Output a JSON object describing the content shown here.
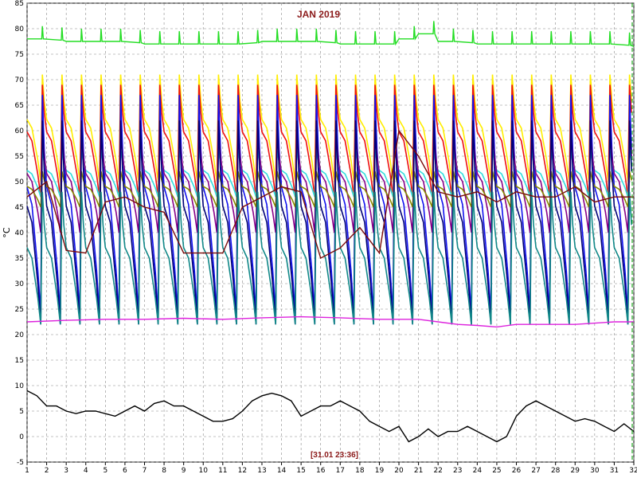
{
  "chart_data": {
    "type": "line",
    "title": "JAN 2019",
    "ylabel": "°C",
    "timestamp": "[31.01 23:36]",
    "xlim": [
      1,
      32
    ],
    "ylim": [
      -5,
      85
    ],
    "x_ticks": [
      1,
      2,
      3,
      4,
      5,
      6,
      7,
      8,
      9,
      10,
      11,
      12,
      13,
      14,
      15,
      16,
      17,
      18,
      19,
      20,
      21,
      22,
      23,
      24,
      25,
      26,
      27,
      28,
      29,
      30,
      31,
      32
    ],
    "y_ticks": [
      -5,
      0,
      5,
      10,
      15,
      20,
      25,
      30,
      35,
      40,
      45,
      50,
      55,
      60,
      65,
      70,
      75,
      80,
      85
    ],
    "grid": true,
    "grid_style": "dashed",
    "cursor_day": 32,
    "colors": {
      "green": "#22dd22",
      "yellow": "#ffee00",
      "red": "#ee1111",
      "blue": "#1111ee",
      "cyan": "#33dddd",
      "purple": "#880088",
      "olive": "#888800",
      "maroon": "#7a0a0a",
      "navy": "#000077",
      "teal": "#118888",
      "magenta": "#dd22dd",
      "black": "#000000"
    },
    "series": [
      {
        "color": "#22dd22",
        "values": [
          [
            1,
            78
          ],
          [
            3,
            77.5
          ],
          [
            5,
            77.5
          ],
          [
            7,
            77
          ],
          [
            9,
            77
          ],
          [
            11,
            77
          ],
          [
            13,
            77.5
          ],
          [
            15,
            77.5
          ],
          [
            17,
            77
          ],
          [
            19,
            77
          ],
          [
            20,
            78
          ],
          [
            21,
            79
          ],
          [
            22,
            77.5
          ],
          [
            24,
            77
          ],
          [
            26,
            77
          ],
          [
            28,
            77
          ],
          [
            30,
            77
          ],
          [
            32,
            76.5
          ]
        ]
      },
      {
        "color": "#dd22dd",
        "values": [
          [
            1,
            22.5
          ],
          [
            3,
            22.8
          ],
          [
            5,
            23
          ],
          [
            7,
            23
          ],
          [
            9,
            23.2
          ],
          [
            11,
            23
          ],
          [
            13,
            23.3
          ],
          [
            15,
            23.5
          ],
          [
            17,
            23.3
          ],
          [
            19,
            23
          ],
          [
            21,
            23
          ],
          [
            22,
            22.5
          ],
          [
            23,
            22
          ],
          [
            24,
            21.8
          ],
          [
            25,
            21.5
          ],
          [
            26,
            22
          ],
          [
            27,
            22
          ],
          [
            29,
            22
          ],
          [
            31,
            22.5
          ],
          [
            32,
            22.5
          ]
        ]
      },
      {
        "color": "#7a0a0a",
        "values": [
          [
            1,
            47
          ],
          [
            2,
            50
          ],
          [
            3,
            36.5
          ],
          [
            4,
            36
          ],
          [
            5,
            46
          ],
          [
            6,
            47
          ],
          [
            7,
            45
          ],
          [
            8,
            44
          ],
          [
            9,
            36
          ],
          [
            10,
            36
          ],
          [
            11,
            36
          ],
          [
            12,
            45
          ],
          [
            13,
            47
          ],
          [
            14,
            49
          ],
          [
            15,
            48
          ],
          [
            16,
            35
          ],
          [
            17,
            37
          ],
          [
            18,
            41
          ],
          [
            19,
            36
          ],
          [
            20,
            60
          ],
          [
            21,
            55
          ],
          [
            22,
            48
          ],
          [
            23,
            47
          ],
          [
            24,
            48
          ],
          [
            25,
            46
          ],
          [
            26,
            48
          ],
          [
            27,
            47
          ],
          [
            28,
            47
          ],
          [
            29,
            49
          ],
          [
            30,
            46
          ],
          [
            31,
            47
          ],
          [
            32,
            47
          ]
        ]
      },
      {
        "color": "#000000",
        "values": [
          [
            1,
            9
          ],
          [
            1.5,
            8
          ],
          [
            2,
            6
          ],
          [
            2.5,
            6
          ],
          [
            3,
            5
          ],
          [
            3.5,
            4.5
          ],
          [
            4,
            5
          ],
          [
            4.5,
            5
          ],
          [
            5,
            4.5
          ],
          [
            5.5,
            4
          ],
          [
            6,
            5
          ],
          [
            6.5,
            6
          ],
          [
            7,
            5
          ],
          [
            7.5,
            6.5
          ],
          [
            8,
            7
          ],
          [
            8.5,
            6
          ],
          [
            9,
            6
          ],
          [
            9.5,
            5
          ],
          [
            10,
            4
          ],
          [
            10.5,
            3
          ],
          [
            11,
            3
          ],
          [
            11.5,
            3.5
          ],
          [
            12,
            5
          ],
          [
            12.5,
            7
          ],
          [
            13,
            8
          ],
          [
            13.5,
            8.5
          ],
          [
            14,
            8
          ],
          [
            14.5,
            7
          ],
          [
            15,
            4
          ],
          [
            15.5,
            5
          ],
          [
            16,
            6
          ],
          [
            16.5,
            6
          ],
          [
            17,
            7
          ],
          [
            17.5,
            6
          ],
          [
            18,
            5
          ],
          [
            18.5,
            3
          ],
          [
            19,
            2
          ],
          [
            19.5,
            1
          ],
          [
            20,
            2
          ],
          [
            20.5,
            -1
          ],
          [
            21,
            0
          ],
          [
            21.5,
            1.5
          ],
          [
            22,
            0
          ],
          [
            22.5,
            1
          ],
          [
            23,
            1
          ],
          [
            23.5,
            2
          ],
          [
            24,
            1
          ],
          [
            24.5,
            0
          ],
          [
            25,
            -1
          ],
          [
            25.5,
            0
          ],
          [
            26,
            4
          ],
          [
            26.5,
            6
          ],
          [
            27,
            7
          ],
          [
            27.5,
            6
          ],
          [
            28,
            5
          ],
          [
            28.5,
            4
          ],
          [
            29,
            3
          ],
          [
            29.5,
            3.5
          ],
          [
            30,
            3
          ],
          [
            30.5,
            2
          ],
          [
            31,
            1
          ],
          [
            31.5,
            2.5
          ],
          [
            32,
            1
          ]
        ]
      }
    ],
    "daily_cycle_series": [
      {
        "color": "#ffee00",
        "base": 50,
        "peak": 71
      },
      {
        "color": "#ee1111",
        "base": 47,
        "peak": 69
      },
      {
        "color": "#1111ee",
        "base": 24,
        "peak": 67
      },
      {
        "color": "#33dddd",
        "base": 47,
        "peak": 56
      },
      {
        "color": "#880088",
        "base": 40,
        "peak": 60
      },
      {
        "color": "#888800",
        "base": 45,
        "peak": 52
      },
      {
        "color": "#000077",
        "base": 22,
        "peak": 62
      },
      {
        "color": "#118888",
        "base": 22,
        "peak": 48
      }
    ]
  }
}
